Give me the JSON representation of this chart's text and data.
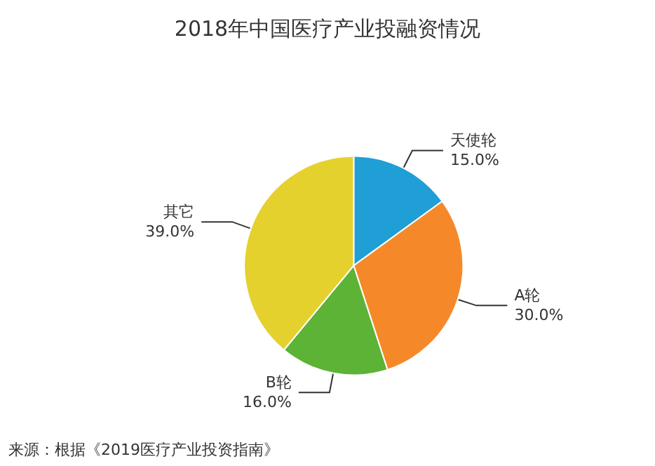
{
  "chart_data": {
    "type": "pie",
    "title": "2018年中国医疗产业投融资情况",
    "categories": [
      "天使轮",
      "A轮",
      "B轮",
      "其它"
    ],
    "values": [
      15,
      30,
      16,
      39
    ],
    "value_labels": [
      "15.0%",
      "30.0%",
      "16.0%",
      "39.0%"
    ],
    "colors": [
      "#1f9fd5",
      "#f5892a",
      "#5cb335",
      "#e5d12e"
    ],
    "annotations": [
      "来源：根据《2019医疗产业投资指南》"
    ],
    "legend": false
  }
}
